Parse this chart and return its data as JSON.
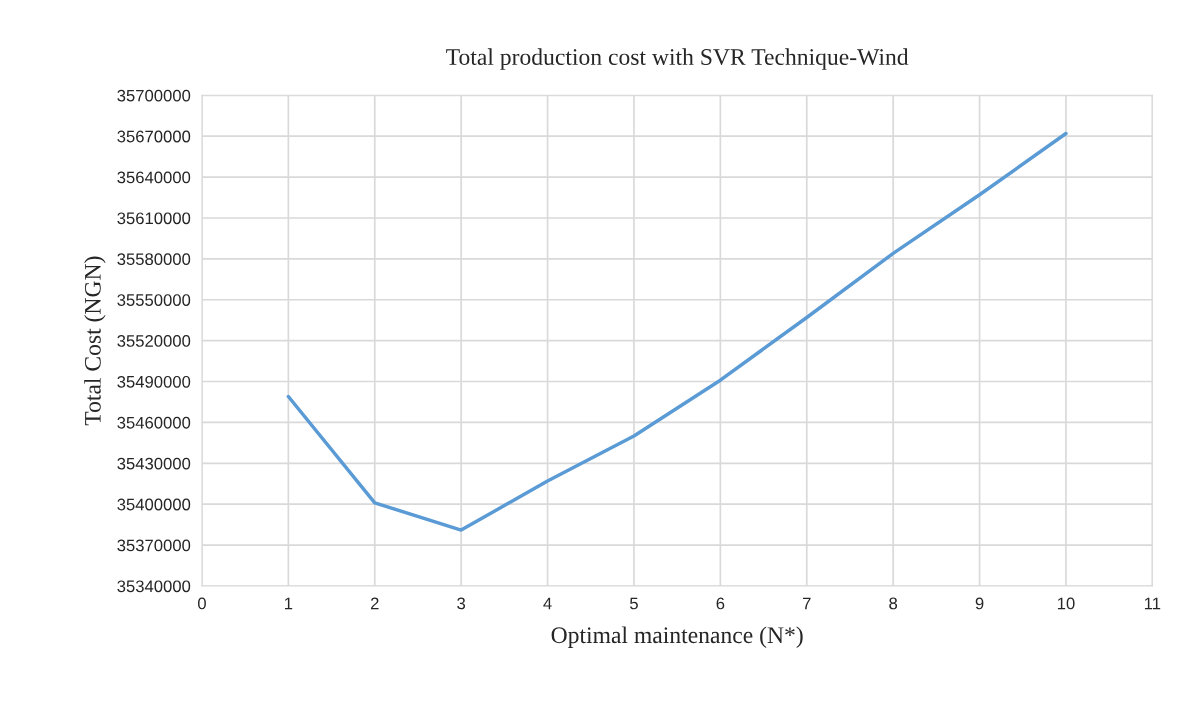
{
  "chart_data": {
    "type": "line",
    "title": "Total production cost with SVR Technique-Wind",
    "xlabel": "Optimal maintenance (N*)",
    "ylabel": "Total Cost (NGN)",
    "x": [
      1,
      2,
      3,
      4,
      5,
      6,
      7,
      8,
      9,
      10
    ],
    "series": [
      {
        "color": "#5b9bd5",
        "values": [
          35479000,
          35401000,
          35381000,
          35417000,
          35450000,
          35491000,
          35537000,
          35584000,
          35627000,
          35672000
        ]
      }
    ],
    "xlim": [
      0,
      11
    ],
    "xticks": [
      0,
      1,
      2,
      3,
      4,
      5,
      6,
      7,
      8,
      9,
      10,
      11
    ],
    "ylim": [
      35340000,
      35700000
    ],
    "yticks": [
      35340000,
      35370000,
      35400000,
      35430000,
      35460000,
      35490000,
      35520000,
      35550000,
      35580000,
      35610000,
      35640000,
      35670000,
      35700000
    ],
    "grid": true,
    "marker": "none",
    "line_style": "solid"
  }
}
